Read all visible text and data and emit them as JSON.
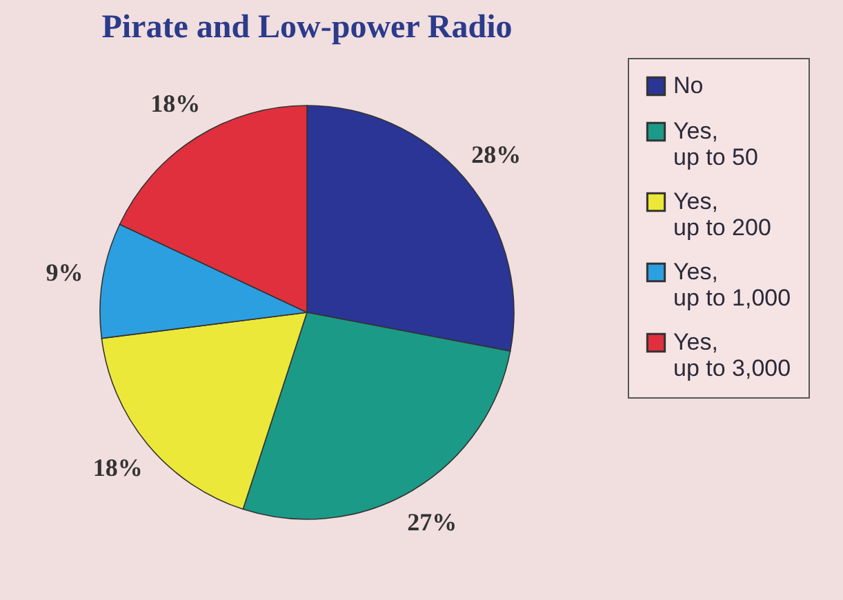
{
  "chart_data": {
    "type": "pie",
    "title": "Pirate and Low-power Radio",
    "categories": [
      "No",
      "Yes, up to 50",
      "Yes, up to 200",
      "Yes, up to 1,000",
      "Yes, up to 3,000"
    ],
    "values": [
      28,
      27,
      18,
      9,
      18
    ],
    "colors": [
      "#2a3596",
      "#1c9a88",
      "#ece83a",
      "#2c9fe0",
      "#e0303e"
    ],
    "value_labels": [
      "28%",
      "27%",
      "18%",
      "9%",
      "18%"
    ],
    "legend": "right"
  }
}
